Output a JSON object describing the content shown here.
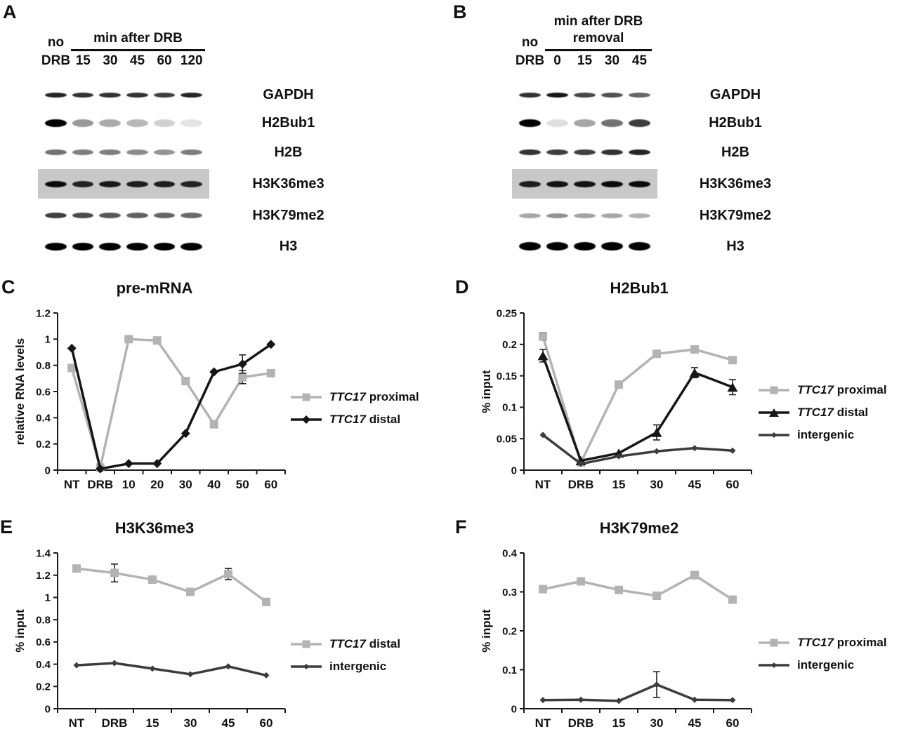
{
  "colors": {
    "axis": "#1a1a1a",
    "proximal_gray": "#b3b3b3",
    "distal_black": "#161616",
    "intergenic_dark": "#3c3c3c",
    "membrane_gray": "#c8c8c8"
  },
  "blots": {
    "A": {
      "panel_letter": "A",
      "control_label_line1": "no",
      "control_label_line2": "DRB",
      "span_label_line1": "min after DRB",
      "span_label_line2": "",
      "lane_labels": [
        "15",
        "30",
        "45",
        "60",
        "120"
      ],
      "rows": [
        {
          "label": "GAPDH",
          "band_height": 7,
          "background": false,
          "intensities": [
            0.85,
            0.8,
            0.8,
            0.8,
            0.75,
            0.85
          ]
        },
        {
          "label": "H2Bub1",
          "band_height": 11,
          "background": false,
          "intensities": [
            1,
            0.4,
            0.33,
            0.28,
            0.18,
            0.1
          ]
        },
        {
          "label": "H2B",
          "band_height": 8,
          "background": false,
          "intensities": [
            0.55,
            0.5,
            0.5,
            0.45,
            0.42,
            0.5
          ]
        },
        {
          "label": "H3K36me3",
          "band_height": 9,
          "background": true,
          "intensities": [
            0.95,
            0.82,
            0.88,
            0.85,
            0.85,
            0.82
          ]
        },
        {
          "label": "H3K79me2",
          "band_height": 8,
          "background": false,
          "intensities": [
            0.75,
            0.7,
            0.65,
            0.62,
            0.6,
            0.58
          ]
        },
        {
          "label": "H3",
          "band_height": 11,
          "background": false,
          "intensities": [
            1,
            1,
            1,
            1,
            1,
            1
          ]
        }
      ]
    },
    "B": {
      "panel_letter": "B",
      "control_label_line1": "no",
      "control_label_line2": "DRB",
      "span_label_line1": "min after DRB",
      "span_label_line2": "removal",
      "lane_labels": [
        "0",
        "15",
        "30",
        "45"
      ],
      "rows": [
        {
          "label": "GAPDH",
          "band_height": 7,
          "background": false,
          "intensities": [
            0.8,
            0.9,
            0.72,
            0.68,
            0.6
          ]
        },
        {
          "label": "H2Bub1",
          "band_height": 11,
          "background": false,
          "intensities": [
            1,
            0.12,
            0.35,
            0.55,
            0.75
          ]
        },
        {
          "label": "H2B",
          "band_height": 8,
          "background": false,
          "intensities": [
            0.8,
            0.75,
            0.75,
            0.8,
            0.85
          ]
        },
        {
          "label": "H3K36me3",
          "band_height": 9,
          "background": true,
          "intensities": [
            0.85,
            0.9,
            0.9,
            0.95,
            0.95
          ]
        },
        {
          "label": "H3K79me2",
          "band_height": 7,
          "background": false,
          "intensities": [
            0.35,
            0.42,
            0.36,
            0.34,
            0.3
          ]
        },
        {
          "label": "H3",
          "band_height": 12,
          "background": false,
          "intensities": [
            1,
            1,
            1,
            1,
            1
          ]
        }
      ]
    }
  },
  "chart_data": [
    {
      "id": "C",
      "panel_letter": "C",
      "type": "line",
      "title": "pre-mRNA",
      "xlabel": "",
      "ylabel": "relative RNA levels",
      "categories": [
        "NT",
        "DRB",
        "10",
        "20",
        "30",
        "40",
        "50",
        "60"
      ],
      "ylim": [
        0,
        1.2
      ],
      "yticks": [
        0,
        0.2,
        0.4,
        0.6,
        0.8,
        1,
        1.2
      ],
      "ytick_labels": [
        "0",
        "0.2",
        "0.4",
        "0.6",
        "0.8",
        "1",
        "1.2"
      ],
      "grid": false,
      "legend_position": "right",
      "series": [
        {
          "name": "TTC17 proximal",
          "legend_italic": "TTC17",
          "legend_rest": " proximal",
          "marker": "square",
          "marker_size": 12,
          "color": "#b3b3b3",
          "values": [
            0.78,
            0.02,
            1.0,
            0.99,
            0.68,
            0.35,
            0.71,
            0.74
          ],
          "errors": [
            0,
            0,
            0,
            0,
            0,
            0,
            0.05,
            0
          ]
        },
        {
          "name": "TTC17 distal",
          "legend_italic": "TTC17",
          "legend_rest": " distal",
          "marker": "diamond",
          "marker_size": 13,
          "color": "#161616",
          "values": [
            0.93,
            0.01,
            0.05,
            0.05,
            0.28,
            0.75,
            0.81,
            0.96
          ],
          "errors": [
            0,
            0,
            0,
            0,
            0,
            0,
            0.07,
            0
          ]
        }
      ]
    },
    {
      "id": "D",
      "panel_letter": "D",
      "type": "line",
      "title": "H2Bub1",
      "xlabel": "",
      "ylabel": "% input",
      "categories": [
        "NT",
        "DRB",
        "15",
        "30",
        "45",
        "60"
      ],
      "ylim": [
        0,
        0.25
      ],
      "yticks": [
        0,
        0.05,
        0.1,
        0.15,
        0.2,
        0.25
      ],
      "ytick_labels": [
        "0",
        "0.05",
        "0.1",
        "0.15",
        "0.2",
        "0.25"
      ],
      "grid": false,
      "legend_position": "right",
      "series": [
        {
          "name": "TTC17 proximal",
          "legend_italic": "TTC17",
          "legend_rest": " proximal",
          "marker": "square",
          "marker_size": 12,
          "color": "#b3b3b3",
          "values": [
            0.213,
            0.012,
            0.136,
            0.185,
            0.192,
            0.175
          ],
          "errors": [
            0.006,
            0,
            0,
            0,
            0,
            0
          ]
        },
        {
          "name": "TTC17 distal",
          "legend_italic": "TTC17",
          "legend_rest": " distal",
          "marker": "triangle",
          "marker_size": 13,
          "color": "#161616",
          "values": [
            0.182,
            0.015,
            0.027,
            0.06,
            0.155,
            0.132
          ],
          "errors": [
            0.01,
            0,
            0,
            0.012,
            0.008,
            0.012
          ]
        },
        {
          "name": "intergenic",
          "legend_italic": "",
          "legend_rest": "intergenic",
          "marker": "diamond",
          "marker_size": 9,
          "color": "#3c3c3c",
          "values": [
            0.056,
            0.01,
            0.022,
            0.03,
            0.035,
            0.031
          ],
          "errors": [
            0,
            0,
            0,
            0,
            0,
            0
          ]
        }
      ]
    },
    {
      "id": "E",
      "panel_letter": "E",
      "type": "line",
      "title": "H3K36me3",
      "xlabel": "",
      "ylabel": "% input",
      "categories": [
        "NT",
        "DRB",
        "15",
        "30",
        "45",
        "60"
      ],
      "ylim": [
        0,
        1.4
      ],
      "yticks": [
        0,
        0.2,
        0.4,
        0.6,
        0.8,
        1,
        1.2,
        1.4
      ],
      "ytick_labels": [
        "0",
        "0.2",
        "0.4",
        "0.6",
        "0.8",
        "1",
        "1.2",
        "1.4"
      ],
      "grid": false,
      "legend_position": "right",
      "series": [
        {
          "name": "TTC17 distal",
          "legend_italic": "TTC17",
          "legend_rest": " distal",
          "marker": "square",
          "marker_size": 12,
          "color": "#b3b3b3",
          "values": [
            1.26,
            1.22,
            1.16,
            1.05,
            1.21,
            0.96
          ],
          "errors": [
            0,
            0.08,
            0,
            0,
            0.05,
            0
          ]
        },
        {
          "name": "intergenic",
          "legend_italic": "",
          "legend_rest": "intergenic",
          "marker": "diamond",
          "marker_size": 9,
          "color": "#3c3c3c",
          "values": [
            0.39,
            0.41,
            0.36,
            0.31,
            0.38,
            0.3
          ],
          "errors": [
            0,
            0,
            0,
            0,
            0,
            0
          ]
        }
      ]
    },
    {
      "id": "F",
      "panel_letter": "F",
      "type": "line",
      "title": "H3K79me2",
      "xlabel": "",
      "ylabel": "% input",
      "categories": [
        "NT",
        "DRB",
        "15",
        "30",
        "45",
        "60"
      ],
      "ylim": [
        0,
        0.4
      ],
      "yticks": [
        0,
        0.1,
        0.2,
        0.3,
        0.4
      ],
      "ytick_labels": [
        "0",
        "0.1",
        "0.2",
        "0.3",
        "0.4"
      ],
      "grid": false,
      "legend_position": "right",
      "series": [
        {
          "name": "TTC17 proximal",
          "legend_italic": "TTC17",
          "legend_rest": " proximal",
          "marker": "square",
          "marker_size": 12,
          "color": "#b3b3b3",
          "values": [
            0.307,
            0.327,
            0.305,
            0.29,
            0.343,
            0.28
          ],
          "errors": [
            0,
            0,
            0,
            0,
            0,
            0
          ]
        },
        {
          "name": "intergenic",
          "legend_italic": "",
          "legend_rest": "intergenic",
          "marker": "diamond",
          "marker_size": 9,
          "color": "#3c3c3c",
          "values": [
            0.022,
            0.023,
            0.02,
            0.062,
            0.023,
            0.022
          ],
          "errors": [
            0,
            0,
            0,
            0.033,
            0,
            0
          ]
        }
      ]
    }
  ]
}
